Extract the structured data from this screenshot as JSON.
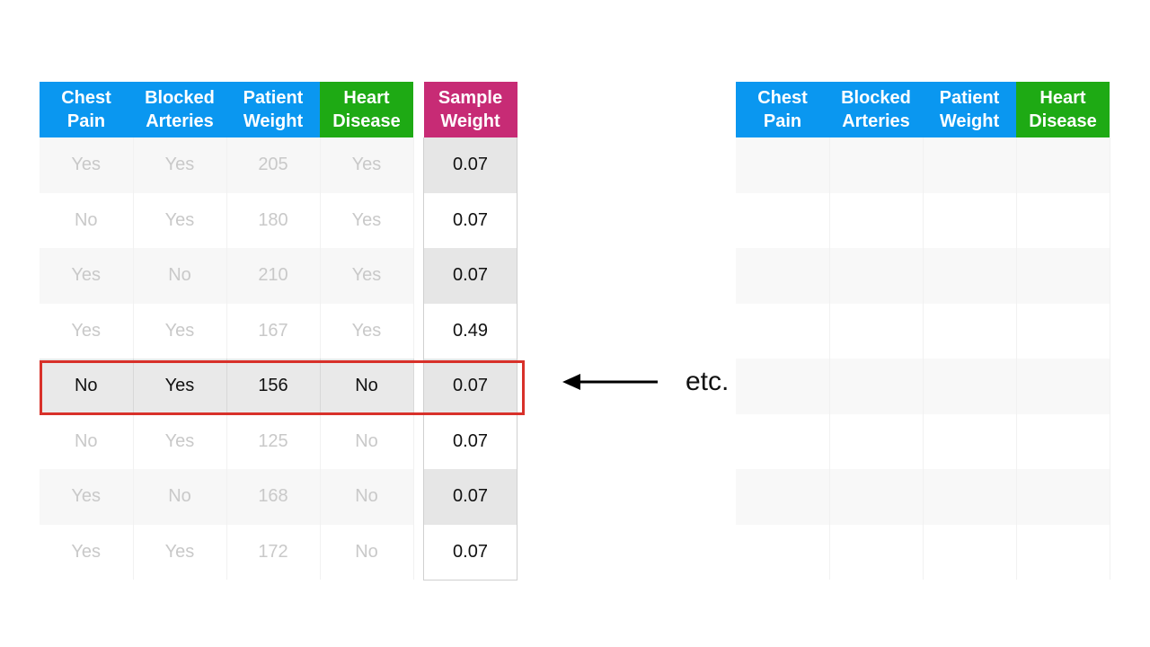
{
  "left_table": {
    "headers": [
      {
        "line1": "Chest",
        "line2": "Pain"
      },
      {
        "line1": "Blocked",
        "line2": "Arteries"
      },
      {
        "line1": "Patient",
        "line2": "Weight"
      },
      {
        "line1": "Heart",
        "line2": "Disease"
      }
    ],
    "rows": [
      [
        "Yes",
        "Yes",
        "205",
        "Yes"
      ],
      [
        "No",
        "Yes",
        "180",
        "Yes"
      ],
      [
        "Yes",
        "No",
        "210",
        "Yes"
      ],
      [
        "Yes",
        "Yes",
        "167",
        "Yes"
      ],
      [
        "No",
        "Yes",
        "156",
        "No"
      ],
      [
        "No",
        "Yes",
        "125",
        "No"
      ],
      [
        "Yes",
        "No",
        "168",
        "No"
      ],
      [
        "Yes",
        "Yes",
        "172",
        "No"
      ]
    ]
  },
  "weight_table": {
    "header": {
      "line1": "Sample",
      "line2": "Weight"
    },
    "values": [
      "0.07",
      "0.07",
      "0.07",
      "0.49",
      "0.07",
      "0.07",
      "0.07",
      "0.07"
    ]
  },
  "right_table": {
    "headers": [
      {
        "line1": "Chest",
        "line2": "Pain"
      },
      {
        "line1": "Blocked",
        "line2": "Arteries"
      },
      {
        "line1": "Patient",
        "line2": "Weight"
      },
      {
        "line1": "Heart",
        "line2": "Disease"
      }
    ],
    "empty_row_count": 8
  },
  "highlighted_row_index": 4,
  "annotation": {
    "etc_label": "etc."
  },
  "colors": {
    "header_blue": "#0a97f0",
    "header_green": "#1eaa14",
    "header_magenta": "#c72b75",
    "highlight_red": "#d8312a"
  }
}
